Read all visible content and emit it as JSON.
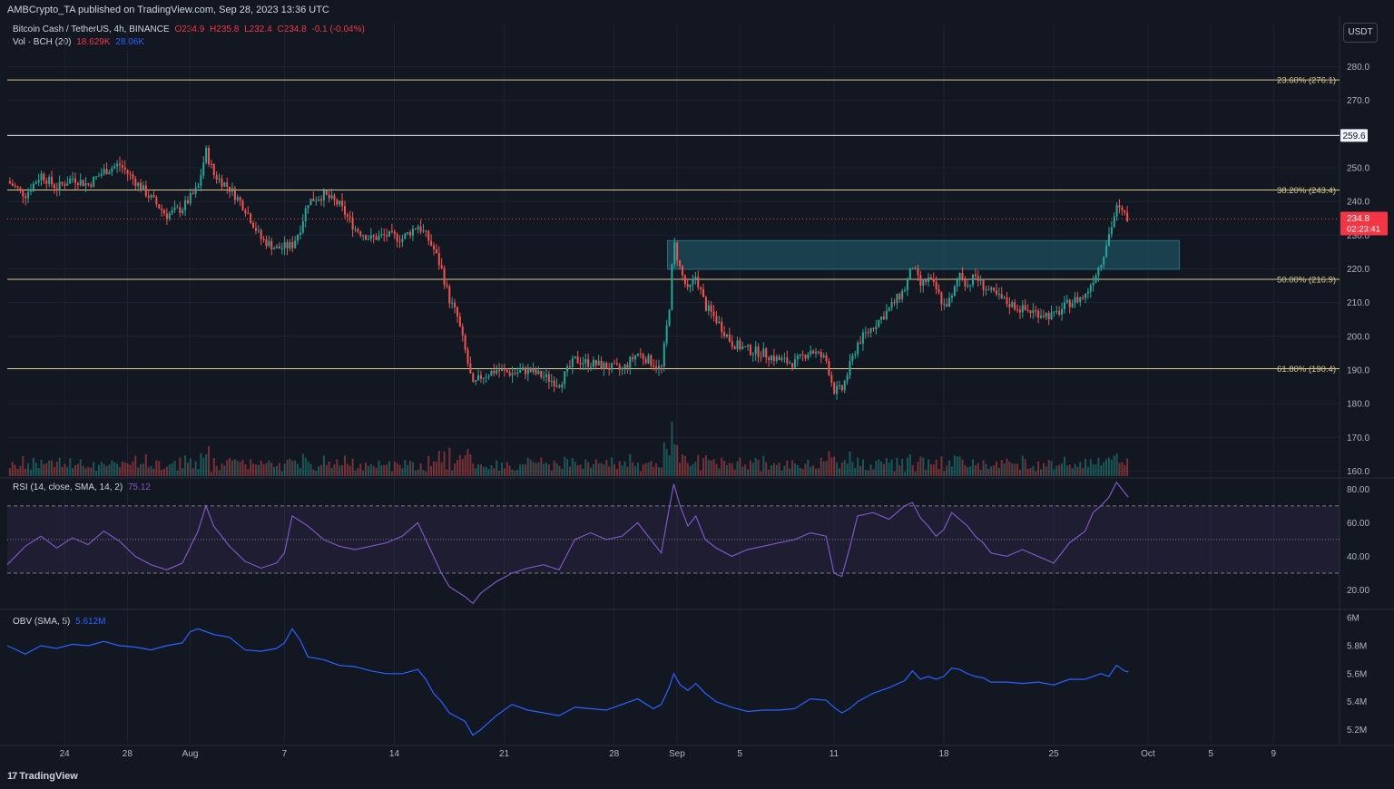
{
  "publisher_line": "AMBCrypto_TA published on TradingView.com, Sep 28, 2023 13:36 UTC",
  "legend": {
    "symbol": "Bitcoin Cash / TetherUS, 4h, BINANCE",
    "o": "O234.9",
    "h": "H235.8",
    "l": "L232.4",
    "c": "C234.8",
    "change": "-0.1 (-0.04%)",
    "vol_label": "Vol · BCH (20)",
    "vol_value": "18.629K",
    "vol_ma": "28.06K",
    "rsi_label": "RSI (14, close, SMA, 14, 2)",
    "rsi_value": "75.12",
    "obv_label": "OBV (SMA, 5)",
    "obv_value": "5.612M"
  },
  "currency": "USDT",
  "branding": "TradingView",
  "colors": {
    "background": "#131722",
    "up": "#26a69a",
    "down": "#ef5350",
    "fib": "#d7c98a",
    "rsi": "#7e57c2",
    "obv": "#2962ff",
    "zone": "#1f4f5c"
  },
  "chart_data": [
    {
      "type": "candlestick",
      "title": "Bitcoin Cash / TetherUS, 4h, BINANCE",
      "y_ticks": [
        280.0,
        270.0,
        260.0,
        250.0,
        240.0,
        230.0,
        220.0,
        210.0,
        200.0,
        190.0,
        180.0,
        170.0,
        160.0
      ],
      "y_tick_labels": [
        "280.0",
        "270.0",
        "",
        "250.0",
        "240.0",
        "230.0",
        "220.0",
        "210.0",
        "200.0",
        "190.0",
        "180.0",
        "170.0",
        "160.0"
      ],
      "ylim": [
        158.5,
        285
      ],
      "x_ticks": [
        "24",
        "28",
        "Aug",
        "7",
        "14",
        "21",
        "28",
        "Sep",
        "5",
        "11",
        "18",
        "25",
        "Oct",
        "5",
        "9"
      ],
      "x_tick_days": [
        24,
        28,
        32,
        38,
        45,
        52,
        59,
        63,
        67,
        73,
        80,
        87,
        93,
        97,
        101
      ],
      "x_axis_day_range": [
        20.35,
        105.2
      ],
      "last_price": "234.8",
      "countdown": "02:23:41",
      "level_label": "259.6",
      "levels": [
        {
          "label": "23.60% (276.1)",
          "value": 276.1
        },
        {
          "label": "38.20% (243.4)",
          "value": 243.4
        },
        {
          "label": "50.00% (216.9)",
          "value": 216.9
        },
        {
          "label": "61.80% (190.4)",
          "value": 190.4
        }
      ],
      "horizontal_line": 259.6,
      "zone": {
        "from_day": 62.4,
        "to_day": 95.0,
        "low": 219.9,
        "high": 228.4
      },
      "price_path": [
        [
          20.35,
          246
        ],
        [
          21.5,
          242
        ],
        [
          22.5,
          248
        ],
        [
          23.5,
          244
        ],
        [
          24.5,
          247
        ],
        [
          25.5,
          245
        ],
        [
          26.5,
          249
        ],
        [
          27.5,
          251
        ],
        [
          28.5,
          246
        ],
        [
          29.5,
          241
        ],
        [
          30.5,
          236
        ],
        [
          31.5,
          238
        ],
        [
          32.5,
          244
        ],
        [
          33.0,
          255
        ],
        [
          33.5,
          248
        ],
        [
          34.5,
          244
        ],
        [
          35.5,
          238
        ],
        [
          36.5,
          229
        ],
        [
          37.5,
          226
        ],
        [
          38.5,
          227
        ],
        [
          39.0,
          232
        ],
        [
          39.5,
          240
        ],
        [
          40.5,
          242
        ],
        [
          41.5,
          239
        ],
        [
          42.5,
          232
        ],
        [
          43.5,
          229
        ],
        [
          44.5,
          230
        ],
        [
          45.5,
          229
        ],
        [
          46.5,
          233
        ],
        [
          47.0,
          230
        ],
        [
          47.5,
          226
        ],
        [
          48.0,
          220
        ],
        [
          48.5,
          211
        ],
        [
          49.0,
          206
        ],
        [
          49.5,
          196
        ],
        [
          50.0,
          185
        ],
        [
          50.5,
          188
        ],
        [
          51.5,
          190
        ],
        [
          52.5,
          189
        ],
        [
          53.5,
          190
        ],
        [
          54.5,
          188
        ],
        [
          55.5,
          186
        ],
        [
          56.5,
          193
        ],
        [
          57.5,
          192
        ],
        [
          58.5,
          191
        ],
        [
          59.5,
          190
        ],
        [
          60.5,
          195
        ],
        [
          61.5,
          192
        ],
        [
          62.0,
          190
        ],
        [
          62.5,
          208
        ],
        [
          62.8,
          228
        ],
        [
          63.2,
          220
        ],
        [
          63.7,
          213
        ],
        [
          64.2,
          218
        ],
        [
          64.8,
          209
        ],
        [
          65.5,
          205
        ],
        [
          66.5,
          198
        ],
        [
          67.5,
          196
        ],
        [
          68.5,
          195
        ],
        [
          69.5,
          193
        ],
        [
          70.5,
          192
        ],
        [
          71.5,
          196
        ],
        [
          72.5,
          193
        ],
        [
          73.0,
          184
        ],
        [
          73.5,
          184
        ],
        [
          74.0,
          191
        ],
        [
          74.5,
          198
        ],
        [
          75.5,
          203
        ],
        [
          76.5,
          208
        ],
        [
          77.5,
          214
        ],
        [
          78.0,
          221
        ],
        [
          78.5,
          215
        ],
        [
          79.0,
          217
        ],
        [
          79.5,
          214
        ],
        [
          80.0,
          209
        ],
        [
          80.5,
          211
        ],
        [
          81.0,
          219
        ],
        [
          81.5,
          215
        ],
        [
          82.0,
          218
        ],
        [
          82.5,
          215
        ],
        [
          83.0,
          213
        ],
        [
          84.0,
          210
        ],
        [
          85.0,
          208
        ],
        [
          86.0,
          207
        ],
        [
          87.0,
          206
        ],
        [
          88.0,
          210
        ],
        [
          89.0,
          212
        ],
        [
          89.5,
          217
        ],
        [
          90.0,
          222
        ],
        [
          90.5,
          230
        ],
        [
          91.0,
          238
        ],
        [
          91.5,
          236
        ],
        [
          91.75,
          234.8
        ]
      ],
      "volume_axis_note": "volume bars share the bottom band of the price pane"
    },
    {
      "type": "line",
      "title": "RSI (14, close, SMA, 14, 2)",
      "y_ticks": [
        80.0,
        60.0,
        40.0,
        20.0
      ],
      "ylim": [
        9.5,
        85
      ],
      "band": [
        30,
        70
      ],
      "midline": 50,
      "last_value": 75.12,
      "path": [
        [
          20.35,
          35
        ],
        [
          21.5,
          46
        ],
        [
          22.5,
          52
        ],
        [
          23.5,
          45
        ],
        [
          24.5,
          51
        ],
        [
          25.5,
          47
        ],
        [
          26.5,
          55
        ],
        [
          27.5,
          49
        ],
        [
          28.5,
          40
        ],
        [
          29.5,
          35
        ],
        [
          30.5,
          32
        ],
        [
          31.5,
          36
        ],
        [
          32.5,
          55
        ],
        [
          33.0,
          70
        ],
        [
          33.5,
          58
        ],
        [
          34.5,
          46
        ],
        [
          35.5,
          37
        ],
        [
          36.5,
          33
        ],
        [
          37.5,
          36
        ],
        [
          38.0,
          42
        ],
        [
          38.5,
          64
        ],
        [
          39.5,
          58
        ],
        [
          40.5,
          50
        ],
        [
          41.5,
          46
        ],
        [
          42.5,
          44
        ],
        [
          43.5,
          46
        ],
        [
          44.5,
          48
        ],
        [
          45.5,
          52
        ],
        [
          46.5,
          60
        ],
        [
          47.0,
          50
        ],
        [
          47.5,
          40
        ],
        [
          48.0,
          30
        ],
        [
          48.5,
          22
        ],
        [
          49.5,
          16
        ],
        [
          50.0,
          12
        ],
        [
          50.5,
          18
        ],
        [
          51.5,
          25
        ],
        [
          52.5,
          30
        ],
        [
          53.5,
          33
        ],
        [
          54.5,
          35
        ],
        [
          55.5,
          32
        ],
        [
          56.5,
          50
        ],
        [
          57.5,
          54
        ],
        [
          58.5,
          50
        ],
        [
          59.5,
          52
        ],
        [
          60.5,
          60
        ],
        [
          61.5,
          48
        ],
        [
          62.0,
          42
        ],
        [
          62.5,
          68
        ],
        [
          62.8,
          83
        ],
        [
          63.2,
          70
        ],
        [
          63.7,
          58
        ],
        [
          64.2,
          64
        ],
        [
          64.8,
          50
        ],
        [
          65.5,
          45
        ],
        [
          66.5,
          40
        ],
        [
          67.5,
          44
        ],
        [
          68.5,
          46
        ],
        [
          69.5,
          48
        ],
        [
          70.5,
          50
        ],
        [
          71.5,
          54
        ],
        [
          72.5,
          52
        ],
        [
          73.0,
          30
        ],
        [
          73.5,
          28
        ],
        [
          74.0,
          45
        ],
        [
          74.5,
          64
        ],
        [
          75.5,
          66
        ],
        [
          76.5,
          62
        ],
        [
          77.5,
          70
        ],
        [
          78.0,
          72
        ],
        [
          78.5,
          63
        ],
        [
          79.0,
          58
        ],
        [
          79.5,
          52
        ],
        [
          80.0,
          56
        ],
        [
          80.5,
          66
        ],
        [
          81.0,
          62
        ],
        [
          81.5,
          58
        ],
        [
          82.0,
          52
        ],
        [
          82.5,
          48
        ],
        [
          83.0,
          42
        ],
        [
          84.0,
          40
        ],
        [
          85.0,
          44
        ],
        [
          86.0,
          40
        ],
        [
          87.0,
          36
        ],
        [
          88.0,
          48
        ],
        [
          89.0,
          55
        ],
        [
          89.5,
          66
        ],
        [
          90.0,
          70
        ],
        [
          90.5,
          75
        ],
        [
          91.0,
          84
        ],
        [
          91.5,
          78
        ],
        [
          91.75,
          75.12
        ]
      ]
    },
    {
      "type": "line",
      "title": "OBV (SMA, 5)",
      "y_ticks": [
        6.0,
        5.8,
        5.6,
        5.4,
        5.2
      ],
      "y_tick_labels": [
        "6M",
        "5.8M",
        "5.6M",
        "5.4M",
        "5.2M"
      ],
      "ylim": [
        5.1,
        6.02
      ],
      "last_value": 5.612,
      "path": [
        [
          20.35,
          5.8
        ],
        [
          21.5,
          5.74
        ],
        [
          22.5,
          5.8
        ],
        [
          23.5,
          5.78
        ],
        [
          24.5,
          5.81
        ],
        [
          25.5,
          5.8
        ],
        [
          26.5,
          5.83
        ],
        [
          27.5,
          5.8
        ],
        [
          28.5,
          5.79
        ],
        [
          29.5,
          5.77
        ],
        [
          30.5,
          5.8
        ],
        [
          31.5,
          5.82
        ],
        [
          32.0,
          5.9
        ],
        [
          32.5,
          5.92
        ],
        [
          33.0,
          5.9
        ],
        [
          33.5,
          5.88
        ],
        [
          34.5,
          5.86
        ],
        [
          35.5,
          5.77
        ],
        [
          36.5,
          5.76
        ],
        [
          37.5,
          5.78
        ],
        [
          38.0,
          5.82
        ],
        [
          38.5,
          5.92
        ],
        [
          39.0,
          5.84
        ],
        [
          39.5,
          5.72
        ],
        [
          40.5,
          5.7
        ],
        [
          41.5,
          5.66
        ],
        [
          42.5,
          5.65
        ],
        [
          43.5,
          5.62
        ],
        [
          44.5,
          5.6
        ],
        [
          45.5,
          5.6
        ],
        [
          46.5,
          5.63
        ],
        [
          47.0,
          5.56
        ],
        [
          47.5,
          5.46
        ],
        [
          48.0,
          5.4
        ],
        [
          48.5,
          5.32
        ],
        [
          49.5,
          5.26
        ],
        [
          50.0,
          5.16
        ],
        [
          50.5,
          5.2
        ],
        [
          51.5,
          5.3
        ],
        [
          52.5,
          5.38
        ],
        [
          53.5,
          5.34
        ],
        [
          54.5,
          5.32
        ],
        [
          55.5,
          5.3
        ],
        [
          56.5,
          5.36
        ],
        [
          57.5,
          5.35
        ],
        [
          58.5,
          5.34
        ],
        [
          59.5,
          5.38
        ],
        [
          60.5,
          5.42
        ],
        [
          61.5,
          5.35
        ],
        [
          62.0,
          5.38
        ],
        [
          62.5,
          5.5
        ],
        [
          62.8,
          5.6
        ],
        [
          63.2,
          5.52
        ],
        [
          63.7,
          5.48
        ],
        [
          64.2,
          5.53
        ],
        [
          64.8,
          5.46
        ],
        [
          65.5,
          5.4
        ],
        [
          66.5,
          5.36
        ],
        [
          67.5,
          5.33
        ],
        [
          68.5,
          5.34
        ],
        [
          69.5,
          5.34
        ],
        [
          70.5,
          5.35
        ],
        [
          71.5,
          5.42
        ],
        [
          72.5,
          5.41
        ],
        [
          73.0,
          5.36
        ],
        [
          73.5,
          5.32
        ],
        [
          74.0,
          5.35
        ],
        [
          74.5,
          5.4
        ],
        [
          75.5,
          5.46
        ],
        [
          76.5,
          5.5
        ],
        [
          77.5,
          5.55
        ],
        [
          78.0,
          5.62
        ],
        [
          78.5,
          5.56
        ],
        [
          79.0,
          5.58
        ],
        [
          79.5,
          5.56
        ],
        [
          80.0,
          5.58
        ],
        [
          80.5,
          5.64
        ],
        [
          81.0,
          5.63
        ],
        [
          81.5,
          5.6
        ],
        [
          82.0,
          5.58
        ],
        [
          82.5,
          5.57
        ],
        [
          83.0,
          5.54
        ],
        [
          84.0,
          5.54
        ],
        [
          85.0,
          5.53
        ],
        [
          86.0,
          5.54
        ],
        [
          87.0,
          5.52
        ],
        [
          88.0,
          5.56
        ],
        [
          89.0,
          5.56
        ],
        [
          89.5,
          5.58
        ],
        [
          90.0,
          5.6
        ],
        [
          90.5,
          5.58
        ],
        [
          91.0,
          5.66
        ],
        [
          91.5,
          5.62
        ],
        [
          91.75,
          5.612
        ]
      ]
    }
  ]
}
